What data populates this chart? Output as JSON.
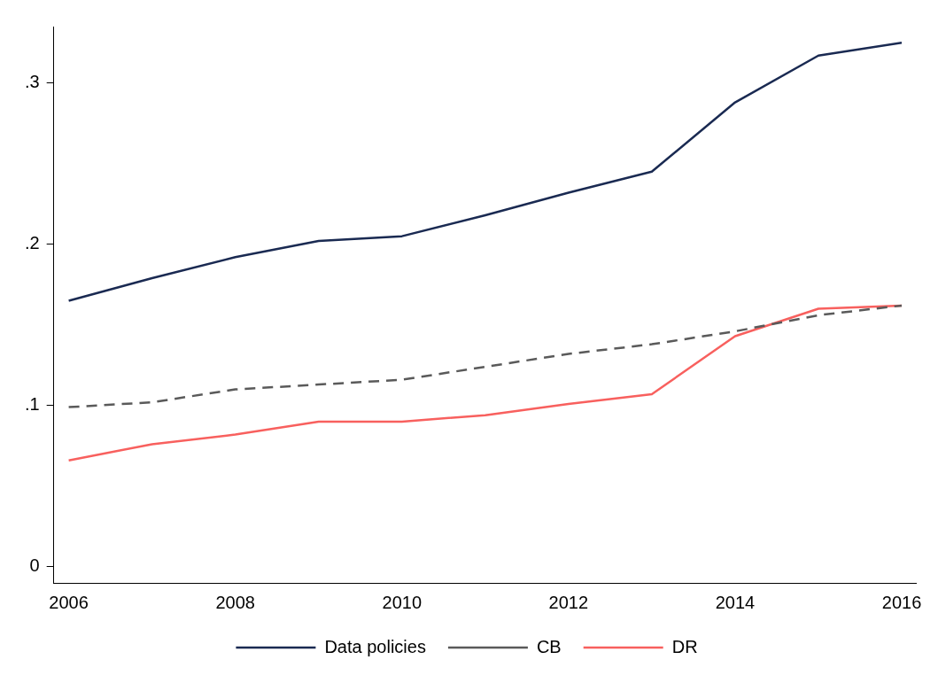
{
  "chart_data": {
    "type": "line",
    "x": [
      2006,
      2007,
      2008,
      2009,
      2010,
      2011,
      2012,
      2013,
      2014,
      2015,
      2016
    ],
    "series": [
      {
        "name": "Data policies",
        "color": "#1a2a52",
        "line_style": "solid",
        "values": [
          0.165,
          0.179,
          0.192,
          0.202,
          0.205,
          0.218,
          0.232,
          0.245,
          0.288,
          0.317,
          0.325
        ]
      },
      {
        "name": "CB",
        "color": "#5a5a5a",
        "line_style": "dashed",
        "values": [
          0.099,
          0.102,
          0.11,
          0.113,
          0.116,
          0.124,
          0.132,
          0.138,
          0.146,
          0.156,
          0.162
        ]
      },
      {
        "name": "DR",
        "color": "#f8605e",
        "line_style": "solid",
        "values": [
          0.066,
          0.076,
          0.082,
          0.09,
          0.09,
          0.094,
          0.101,
          0.107,
          0.143,
          0.16,
          0.162
        ]
      }
    ],
    "xlim": [
      2005.82,
      2016.17
    ],
    "xticks": [
      2006,
      2008,
      2010,
      2012,
      2014,
      2016
    ],
    "ylim": [
      -0.01,
      0.335
    ],
    "yticks": [
      {
        "value": 0,
        "label": "0"
      },
      {
        "value": 0.1,
        "label": ".1"
      },
      {
        "value": 0.2,
        "label": ".2"
      },
      {
        "value": 0.3,
        "label": ".3"
      }
    ],
    "grid": false,
    "legend": "bottom",
    "marker": "none"
  }
}
